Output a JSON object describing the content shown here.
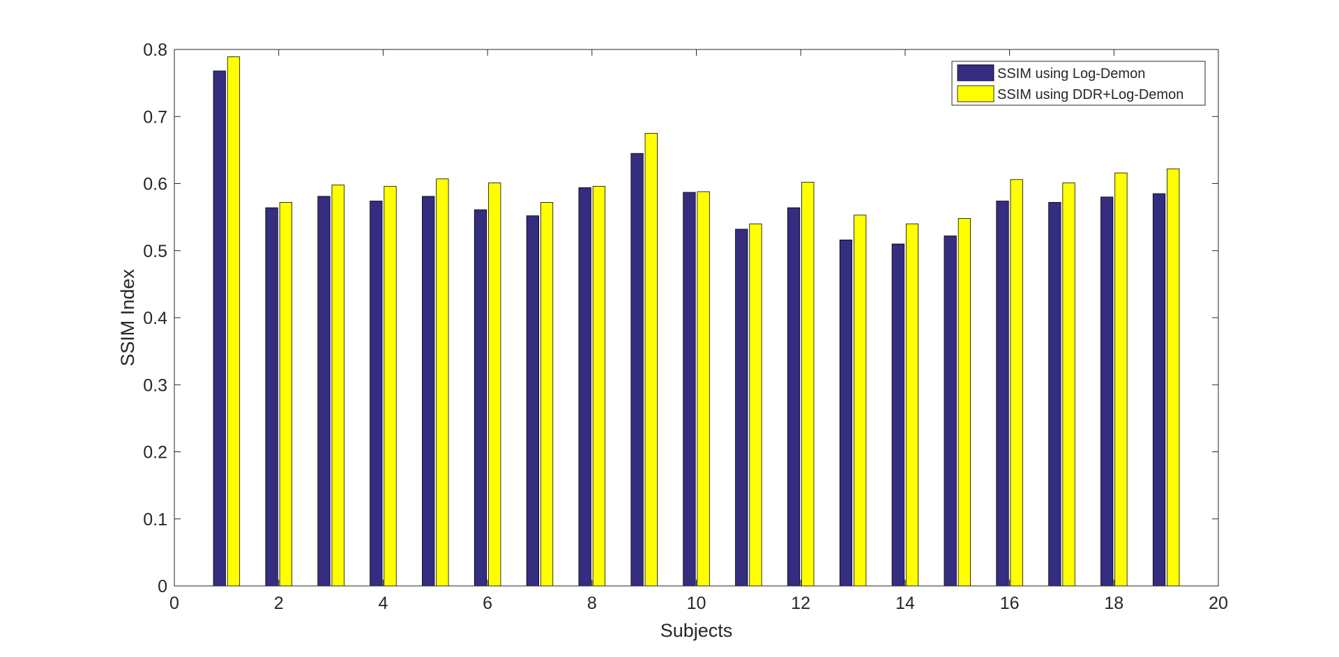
{
  "chart_data": {
    "type": "bar",
    "title": "",
    "xlabel": "Subjects",
    "ylabel": "SSIM Index",
    "xlim": [
      0,
      20
    ],
    "ylim": [
      0,
      0.8
    ],
    "x": [
      1,
      2,
      3,
      4,
      5,
      6,
      7,
      8,
      9,
      10,
      11,
      12,
      13,
      14,
      15,
      16,
      17,
      18,
      19
    ],
    "xticks": [
      0,
      2,
      4,
      6,
      8,
      10,
      12,
      14,
      16,
      18,
      20
    ],
    "xtick_labels": [
      "0",
      "2",
      "4",
      "6",
      "8",
      "10",
      "12",
      "14",
      "16",
      "18",
      "20"
    ],
    "yticks": [
      0,
      0.1,
      0.2,
      0.3,
      0.4,
      0.5,
      0.6,
      0.7,
      0.8
    ],
    "ytick_labels": [
      "0",
      "0.1",
      "0.2",
      "0.3",
      "0.4",
      "0.5",
      "0.6",
      "0.7",
      "0.8"
    ],
    "grid": false,
    "legend_position": "top-right",
    "series": [
      {
        "name": "SSIM using Log-Demon",
        "color": "#342D80",
        "values": [
          0.768,
          0.564,
          0.581,
          0.574,
          0.581,
          0.561,
          0.552,
          0.594,
          0.645,
          0.587,
          0.532,
          0.564,
          0.516,
          0.51,
          0.522,
          0.574,
          0.572,
          0.58,
          0.585
        ]
      },
      {
        "name": "SSIM using DDR+Log-Demon",
        "color": "#FFFF00",
        "values": [
          0.789,
          0.572,
          0.598,
          0.596,
          0.607,
          0.601,
          0.572,
          0.596,
          0.675,
          0.588,
          0.54,
          0.602,
          0.553,
          0.54,
          0.548,
          0.606,
          0.601,
          0.616,
          0.622
        ]
      }
    ]
  }
}
